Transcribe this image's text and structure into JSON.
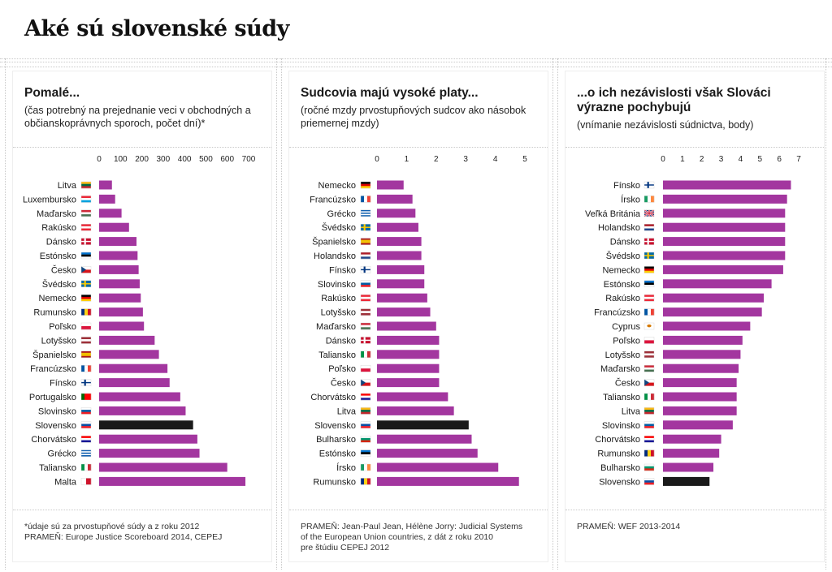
{
  "title": "Aké sú slovenské súdy",
  "colors": {
    "bar": "#a3369f",
    "highlight": "#1a1a1a"
  },
  "chart_data": [
    {
      "type": "bar",
      "orientation": "horizontal",
      "title": "Pomalé...",
      "subtitle": "(čas potrebný na prejednanie veci v obchodných a občianskoprávnych sporoch, počet dní)*",
      "xlim": [
        0,
        700
      ],
      "ticks": [
        0,
        100,
        200,
        300,
        400,
        500,
        600,
        700
      ],
      "highlight": "Slovensko",
      "categories": [
        "Litva",
        "Luxembursko",
        "Maďarsko",
        "Rakúsko",
        "Dánsko",
        "Estónsko",
        "Česko",
        "Švédsko",
        "Nemecko",
        "Rumunsko",
        "Poľsko",
        "Lotyšsko",
        "Španielsko",
        "Francúzsko",
        "Fínsko",
        "Portugalsko",
        "Slovinsko",
        "Slovensko",
        "Chorvátsko",
        "Grécko",
        "Taliansko",
        "Malta"
      ],
      "values": [
        60,
        75,
        105,
        140,
        175,
        180,
        185,
        190,
        195,
        205,
        210,
        260,
        280,
        320,
        330,
        380,
        405,
        440,
        460,
        470,
        600,
        685
      ],
      "note": [
        "*údaje sú za prvostupňové súdy a z roku 2012",
        "PRAMEŇ: Europe Justice Scoreboard 2014, CEPEJ"
      ]
    },
    {
      "type": "bar",
      "orientation": "horizontal",
      "title": "Sudcovia majú vysoké platy...",
      "subtitle": "(ročné mzdy prvostupňových sudcov ako násobok priemernej mzdy)",
      "xlim": [
        0,
        5
      ],
      "ticks": [
        0,
        1,
        2,
        3,
        4,
        5
      ],
      "highlight": "Slovensko",
      "categories": [
        "Nemecko",
        "Francúzsko",
        "Grécko",
        "Švédsko",
        "Španielsko",
        "Holandsko",
        "Fínsko",
        "Slovinsko",
        "Rakúsko",
        "Lotyšsko",
        "Maďarsko",
        "Dánsko",
        "Taliansko",
        "Poľsko",
        "Česko",
        "Chorvátsko",
        "Litva",
        "Slovensko",
        "Bulharsko",
        "Estónsko",
        "Írsko",
        "Rumunsko"
      ],
      "values": [
        0.9,
        1.2,
        1.3,
        1.4,
        1.5,
        1.5,
        1.6,
        1.6,
        1.7,
        1.8,
        2.0,
        2.1,
        2.1,
        2.1,
        2.1,
        2.4,
        2.6,
        3.1,
        3.2,
        3.4,
        4.1,
        4.8
      ],
      "note": [
        "PRAMEŇ: Jean-Paul Jean, Hélène Jorry: Judicial Systems",
        "of the European Union countries, z dát z roku 2010",
        "pre štúdiu CEPEJ 2012"
      ]
    },
    {
      "type": "bar",
      "orientation": "horizontal",
      "title": "...o ich nezávislosti však Slováci výrazne pochybujú",
      "subtitle": "(vnímanie nezávislosti súdnictva, body)",
      "xlim": [
        0,
        7
      ],
      "ticks": [
        0,
        1,
        2,
        3,
        4,
        5,
        6,
        7
      ],
      "highlight": "Slovensko",
      "categories": [
        "Fínsko",
        "Írsko",
        "Veľká Británia",
        "Holandsko",
        "Dánsko",
        "Švédsko",
        "Nemecko",
        "Estónsko",
        "Rakúsko",
        "Francúzsko",
        "Cyprus",
        "Poľsko",
        "Lotyšsko",
        "Maďarsko",
        "Česko",
        "Taliansko",
        "Litva",
        "Slovinsko",
        "Chorvátsko",
        "Rumunsko",
        "Bulharsko",
        "Slovensko"
      ],
      "values": [
        6.6,
        6.4,
        6.3,
        6.3,
        6.3,
        6.3,
        6.2,
        5.6,
        5.2,
        5.1,
        4.5,
        4.1,
        4.0,
        3.9,
        3.8,
        3.8,
        3.8,
        3.6,
        3.0,
        2.9,
        2.6,
        2.4
      ],
      "note": [
        "PRAMEŇ: WEF 2013-2014"
      ]
    }
  ]
}
